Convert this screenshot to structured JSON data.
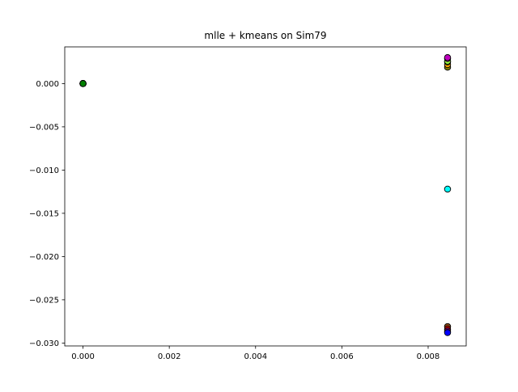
{
  "chart_data": {
    "type": "scatter",
    "title": "mlle + kmeans on Sim79",
    "xlabel": "",
    "ylabel": "",
    "xlim": [
      -0.000423,
      0.008882
    ],
    "ylim": [
      -0.030337,
      0.004244
    ],
    "grid": false,
    "legend": "none",
    "xticks": [
      0.0,
      0.002,
      0.004,
      0.006,
      0.008
    ],
    "xtick_labels": [
      "0.000",
      "0.002",
      "0.004",
      "0.006",
      "0.008"
    ],
    "yticks": [
      0.0,
      -0.005,
      -0.01,
      -0.015,
      -0.02,
      -0.025,
      -0.03
    ],
    "ytick_labels": [
      "0.000",
      "−0.005",
      "−0.010",
      "−0.015",
      "−0.020",
      "−0.025",
      "−0.030"
    ],
    "points": [
      {
        "x": 0.0,
        "y": 0.0,
        "color": "#ff0000"
      },
      {
        "x": 0.0,
        "y": 0.0,
        "color": "#ffff00"
      },
      {
        "x": 0.0,
        "y": 0.0,
        "color": "#00ff00"
      },
      {
        "x": 0.0,
        "y": 0.0,
        "color": "#00ffff"
      },
      {
        "x": 0.0,
        "y": 0.0,
        "color": "#0000ff"
      },
      {
        "x": 0.0,
        "y": 0.0,
        "color": "#ff00ff"
      },
      {
        "x": 0.0,
        "y": 0.0,
        "color": "#808080"
      },
      {
        "x": 0.0,
        "y": 0.0,
        "color": "#008000"
      },
      {
        "x": 0.00845,
        "y": 0.0019,
        "color": "#808000"
      },
      {
        "x": 0.00845,
        "y": 0.0022,
        "color": "#ffa500"
      },
      {
        "x": 0.00845,
        "y": 0.0025,
        "color": "#00ff00"
      },
      {
        "x": 0.00845,
        "y": 0.0026,
        "color": "#a0ff40"
      },
      {
        "x": 0.00845,
        "y": 0.0029,
        "color": "#ff00ff"
      },
      {
        "x": 0.00845,
        "y": 0.003,
        "color": "#c000c0"
      },
      {
        "x": 0.00845,
        "y": -0.0122,
        "color": "#00ffff"
      },
      {
        "x": 0.00845,
        "y": -0.0281,
        "color": "#8b4513"
      },
      {
        "x": 0.00845,
        "y": -0.0284,
        "color": "#ff0000"
      },
      {
        "x": 0.00845,
        "y": -0.0286,
        "color": "#800080"
      },
      {
        "x": 0.00845,
        "y": -0.0288,
        "color": "#0000ff"
      }
    ]
  }
}
